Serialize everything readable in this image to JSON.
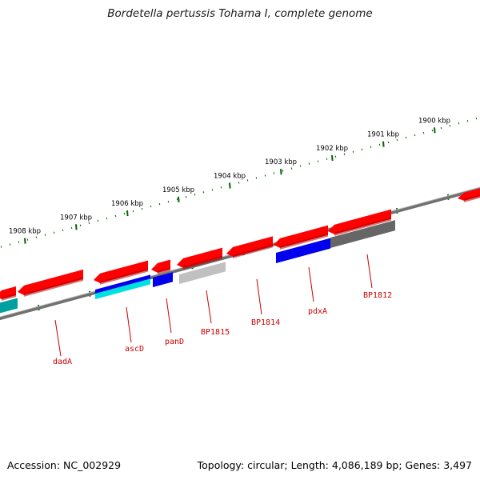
{
  "title": "Bordetella pertussis Tohama I, complete genome",
  "footer": {
    "accession": "Accession: NC_002929",
    "summary": "Topology: circular; Length: 4,086,189 bp; Genes: 3,497"
  },
  "map": {
    "kbp_ticks": [
      {
        "label": "1908 kbp",
        "value": 1908
      },
      {
        "label": "1907 kbp",
        "value": 1907
      },
      {
        "label": "1906 kbp",
        "value": 1906
      },
      {
        "label": "1905 kbp",
        "value": 1905
      },
      {
        "label": "1904 kbp",
        "value": 1904
      },
      {
        "label": "1903 kbp",
        "value": 1903
      },
      {
        "label": "1902 kbp",
        "value": 1902
      },
      {
        "label": "1901 kbp",
        "value": 1901
      },
      {
        "label": "1900 kbp",
        "value": 1900
      }
    ],
    "gene_labels": [
      "dadA",
      "ascD",
      "panD",
      "BP1815",
      "BP1814",
      "pdxA",
      "BP1812"
    ],
    "colors": {
      "cds": "#ff0000",
      "cds_dark": "#b00000",
      "label": "#cc0000",
      "backbone": "#707070",
      "tick": "#006600",
      "blue": "#0000ee",
      "cyan": "#00e0e0",
      "teal": "#00a0a0",
      "light_gray": "#c0c0c0",
      "dark_gray": "#666666"
    }
  }
}
